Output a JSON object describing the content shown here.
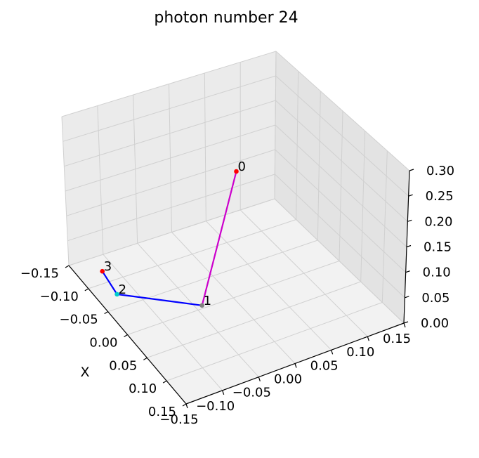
{
  "chart_data": {
    "type": "line3d",
    "title": "photon number 24",
    "xlabel": "X",
    "ylabel": "",
    "zlabel": "",
    "xlim": [
      -0.15,
      0.15
    ],
    "ylim": [
      -0.15,
      0.15
    ],
    "zlim": [
      0.0,
      0.3
    ],
    "x_ticks": [
      "−0.15",
      "−0.10",
      "−0.05",
      "0.00",
      "0.05",
      "0.10",
      "0.15"
    ],
    "y_ticks": [
      "−0.15",
      "−0.10",
      "−0.05",
      "0.00",
      "0.05",
      "0.10",
      "0.15"
    ],
    "z_ticks": [
      "0.00",
      "0.05",
      "0.10",
      "0.15",
      "0.20",
      "0.25",
      "0.30"
    ],
    "grid": true,
    "points": [
      {
        "label": "0",
        "x": 0.0,
        "y": 0.0,
        "z": 0.25,
        "color": "#ff0000"
      },
      {
        "label": "1",
        "x": 0.0,
        "y": -0.05,
        "z": 0.0,
        "color": "#808080"
      },
      {
        "label": "2",
        "x": -0.07,
        "y": -0.13,
        "z": 0.0,
        "color": "#00cccc"
      },
      {
        "label": "3",
        "x": -0.12,
        "y": -0.12,
        "z": 0.0,
        "color": "#ff0000"
      }
    ],
    "segments": [
      {
        "from": 0,
        "to": 1,
        "color": "#cc00cc"
      },
      {
        "from": 1,
        "to": 2,
        "color": "#0000ff"
      },
      {
        "from": 2,
        "to": 3,
        "color": "#0000ff"
      }
    ]
  }
}
